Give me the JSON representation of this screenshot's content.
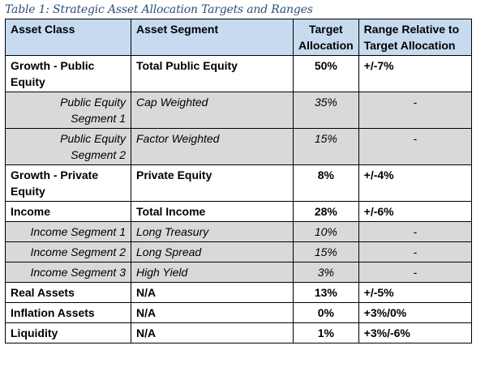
{
  "caption": "Table 1: Strategic Asset Allocation Targets and Ranges",
  "headers": {
    "asset_class": "Asset Class",
    "asset_segment": "Asset Segment",
    "target_l1": "Target",
    "target_l2": "Allocation",
    "range_l1": "Range Relative to",
    "range_l2": "Target Allocation"
  },
  "rows": [
    {
      "kind": "main",
      "cls": [
        "Growth - Public",
        "Equity"
      ],
      "seg": "Total Public Equity",
      "target": "50%",
      "range": "+/-7%"
    },
    {
      "kind": "sub",
      "cls": [
        "Public Equity",
        "Segment 1"
      ],
      "seg": "Cap Weighted",
      "target": "35%",
      "range": "-"
    },
    {
      "kind": "sub",
      "cls": [
        "Public Equity",
        "Segment 2"
      ],
      "seg": "Factor Weighted",
      "target": "15%",
      "range": "-"
    },
    {
      "kind": "main",
      "cls": [
        "Growth - Private",
        "Equity"
      ],
      "seg": "Private Equity",
      "target": "8%",
      "range": "+/-4%"
    },
    {
      "kind": "main",
      "cls": [
        "Income"
      ],
      "seg": "Total Income",
      "target": "28%",
      "range": "+/-6%"
    },
    {
      "kind": "sub",
      "cls": [
        "Income Segment 1"
      ],
      "seg": "Long Treasury",
      "target": "10%",
      "range": "-"
    },
    {
      "kind": "sub",
      "cls": [
        "Income Segment 2"
      ],
      "seg": "Long Spread",
      "target": "15%",
      "range": "-"
    },
    {
      "kind": "sub",
      "cls": [
        "Income Segment 3"
      ],
      "seg": "High Yield",
      "target": "3%",
      "range": "-"
    },
    {
      "kind": "main",
      "cls": [
        "Real Assets"
      ],
      "seg": "N/A",
      "target": "13%",
      "range": "+/-5%"
    },
    {
      "kind": "main",
      "cls": [
        "Inflation Assets"
      ],
      "seg": "N/A",
      "target": "0%",
      "range": "+3%/0%"
    },
    {
      "kind": "main",
      "cls": [
        "Liquidity"
      ],
      "seg": "N/A",
      "target": "1%",
      "range": "+3%/-6%"
    }
  ]
}
